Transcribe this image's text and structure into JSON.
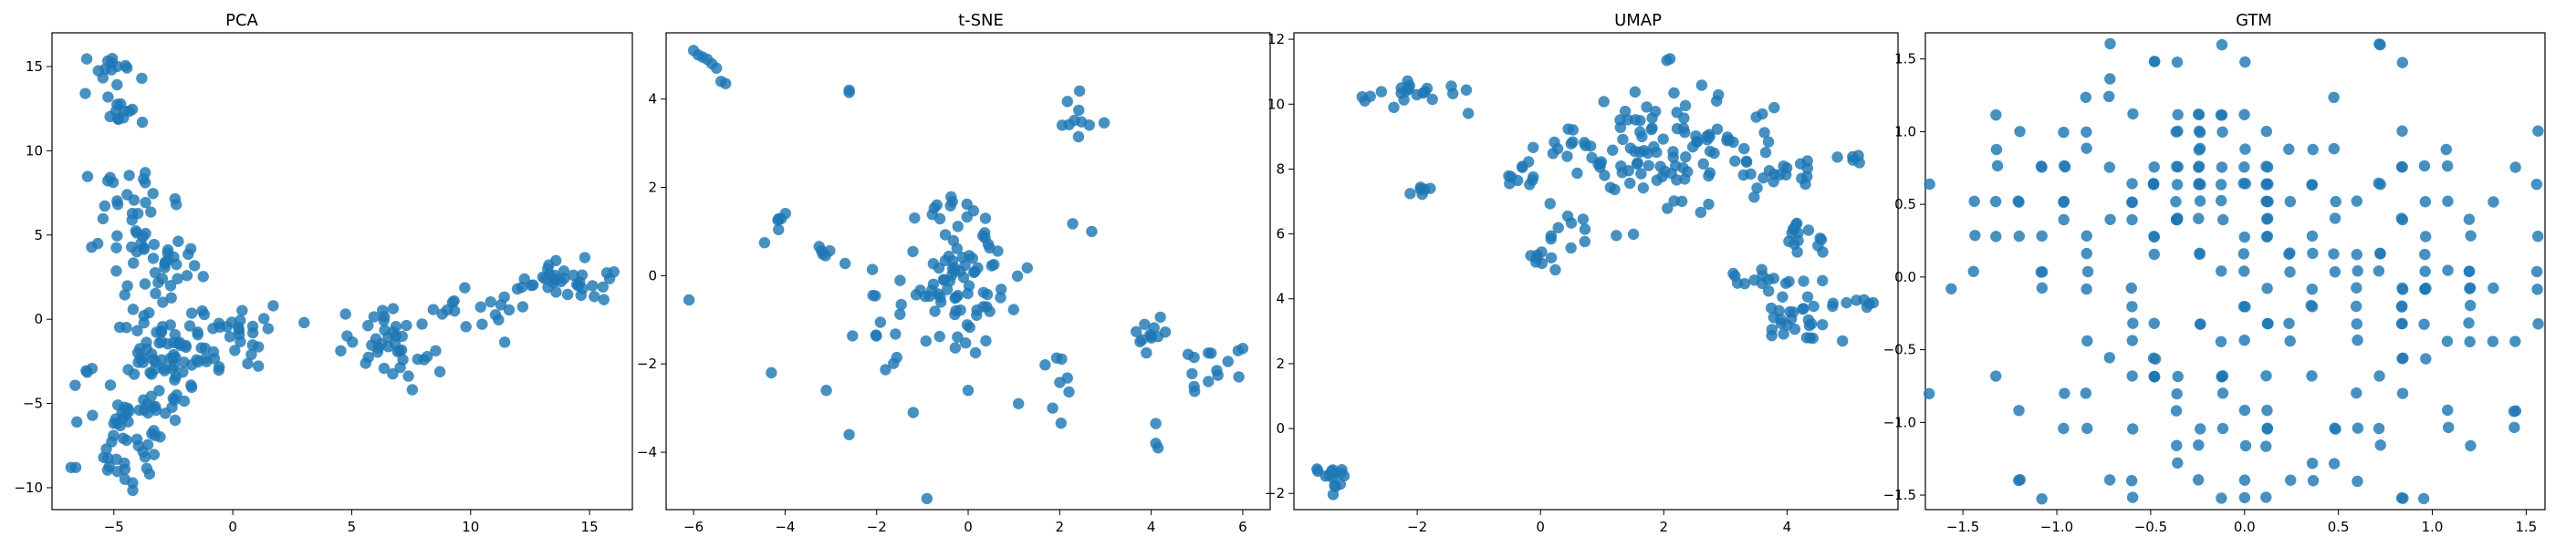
{
  "chart_data": [
    {
      "type": "scatter",
      "title": "PCA",
      "xlim": [
        -7.6,
        16.8
      ],
      "ylim": [
        -11.3,
        17.0
      ],
      "xticks": [
        -5,
        0,
        5,
        10,
        15
      ],
      "yticks": [
        -10,
        -5,
        0,
        5,
        10,
        15
      ],
      "color": "#1f77b4",
      "grid": false,
      "clusters": [
        {
          "x": -5.0,
          "y": 14.5,
          "sx": 0.45,
          "sy": 0.8,
          "n": 15
        },
        {
          "x": -4.5,
          "y": 12.0,
          "sx": 0.35,
          "sy": 0.4,
          "n": 10
        },
        {
          "x": -4.5,
          "y": 6.5,
          "sx": 1.0,
          "sy": 1.3,
          "n": 25
        },
        {
          "x": -3.2,
          "y": 3.5,
          "sx": 1.0,
          "sy": 1.6,
          "n": 40
        },
        {
          "x": -2.8,
          "y": -1.5,
          "sx": 1.4,
          "sy": 1.3,
          "n": 60
        },
        {
          "x": -4.0,
          "y": -5.5,
          "sx": 1.1,
          "sy": 1.6,
          "n": 50
        },
        {
          "x": -4.3,
          "y": -8.8,
          "sx": 0.8,
          "sy": 0.8,
          "n": 15
        },
        {
          "x": -0.2,
          "y": -1.0,
          "sx": 1.0,
          "sy": 1.1,
          "n": 30
        },
        {
          "x": 6.5,
          "y": -1.5,
          "sx": 1.1,
          "sy": 1.1,
          "n": 40
        },
        {
          "x": 10.0,
          "y": 0.5,
          "sx": 1.2,
          "sy": 0.7,
          "n": 20
        },
        {
          "x": 14.0,
          "y": 2.3,
          "sx": 1.0,
          "sy": 0.6,
          "n": 35
        }
      ],
      "extra_points": [
        [
          -6.8,
          -8.8
        ],
        [
          -6.6,
          -8.8
        ],
        [
          3.0,
          -0.2
        ],
        [
          1.7,
          0.8
        ],
        [
          -6.2,
          13.4
        ]
      ]
    },
    {
      "type": "scatter",
      "title": "t-SNE",
      "xlim": [
        -6.6,
        6.6
      ],
      "ylim": [
        -5.3,
        5.5
      ],
      "xticks": [
        -6,
        -4,
        -2,
        0,
        2,
        4,
        6
      ],
      "yticks": [
        -4,
        -2,
        0,
        2,
        4
      ],
      "color": "#1f77b4",
      "grid": false,
      "clusters": [
        {
          "x": -0.1,
          "y": 0.1,
          "sx": 0.75,
          "sy": 0.8,
          "n": 90
        },
        {
          "x": -1.7,
          "y": -0.7,
          "sx": 0.35,
          "sy": 0.7,
          "n": 12
        },
        {
          "x": 2.4,
          "y": 3.6,
          "sx": 0.25,
          "sy": 0.25,
          "n": 10
        },
        {
          "x": 4.0,
          "y": -1.3,
          "sx": 0.2,
          "sy": 0.3,
          "n": 12
        },
        {
          "x": 5.3,
          "y": -2.1,
          "sx": 0.4,
          "sy": 0.2,
          "n": 12
        },
        {
          "x": -4.0,
          "y": 1.1,
          "sx": 0.25,
          "sy": 0.25,
          "n": 6
        },
        {
          "x": 2.1,
          "y": -2.7,
          "sx": 0.2,
          "sy": 0.4,
          "n": 8
        },
        {
          "x": -3.2,
          "y": 0.55,
          "sx": 0.15,
          "sy": 0.08,
          "n": 5
        }
      ],
      "extra_points": [
        [
          -6.0,
          5.1
        ],
        [
          -5.9,
          5.0
        ],
        [
          -5.8,
          4.95
        ],
        [
          -5.7,
          4.9
        ],
        [
          -5.6,
          4.8
        ],
        [
          -5.5,
          4.7
        ],
        [
          -5.3,
          4.35
        ],
        [
          -5.4,
          4.4
        ],
        [
          -6.1,
          -0.55
        ],
        [
          -4.3,
          -2.2
        ],
        [
          -2.6,
          4.2
        ],
        [
          -2.6,
          4.15
        ],
        [
          -0.9,
          -5.05
        ],
        [
          4.1,
          -3.35
        ],
        [
          4.1,
          -3.8
        ],
        [
          4.15,
          -3.9
        ],
        [
          5.9,
          -1.7
        ],
        [
          6.0,
          -1.65
        ],
        [
          2.7,
          1.0
        ],
        [
          -2.6,
          -3.6
        ],
        [
          -3.1,
          -2.6
        ],
        [
          -1.2,
          -3.1
        ],
        [
          0.0,
          -2.6
        ],
        [
          1.1,
          -2.9
        ]
      ]
    },
    {
      "type": "scatter",
      "title": "UMAP",
      "xlim": [
        -4.0,
        5.8
      ],
      "ylim": [
        -2.5,
        12.2
      ],
      "xticks": [
        -2,
        0,
        2,
        4
      ],
      "yticks": [
        -2,
        0,
        2,
        4,
        6,
        8,
        10,
        12
      ],
      "color": "#1f77b4",
      "grid": false,
      "clusters": [
        {
          "x": -3.4,
          "y": -1.5,
          "sx": 0.15,
          "sy": 0.25,
          "n": 15
        },
        {
          "x": -2.0,
          "y": 10.3,
          "sx": 0.4,
          "sy": 0.2,
          "n": 20
        },
        {
          "x": -1.9,
          "y": 7.4,
          "sx": 0.12,
          "sy": 0.12,
          "n": 6
        },
        {
          "x": -0.4,
          "y": 7.7,
          "sx": 0.15,
          "sy": 0.2,
          "n": 8
        },
        {
          "x": 1.9,
          "y": 8.5,
          "sx": 0.9,
          "sy": 0.9,
          "n": 120
        },
        {
          "x": 0.6,
          "y": 6.0,
          "sx": 0.25,
          "sy": 0.3,
          "n": 10
        },
        {
          "x": 0.1,
          "y": 5.2,
          "sx": 0.25,
          "sy": 0.2,
          "n": 8
        },
        {
          "x": 3.9,
          "y": 8.0,
          "sx": 0.3,
          "sy": 0.3,
          "n": 12
        },
        {
          "x": 4.4,
          "y": 6.0,
          "sx": 0.3,
          "sy": 0.3,
          "n": 15
        },
        {
          "x": 3.7,
          "y": 4.5,
          "sx": 0.3,
          "sy": 0.25,
          "n": 15
        },
        {
          "x": 4.1,
          "y": 3.4,
          "sx": 0.3,
          "sy": 0.4,
          "n": 25
        },
        {
          "x": 5.0,
          "y": 3.9,
          "sx": 0.2,
          "sy": 0.15,
          "n": 8
        },
        {
          "x": 5.1,
          "y": 8.4,
          "sx": 0.2,
          "sy": 0.1,
          "n": 5
        }
      ],
      "extra_points": [
        [
          2.1,
          11.4
        ],
        [
          2.05,
          11.35
        ],
        [
          3.5,
          9.6
        ],
        [
          3.6,
          9.7
        ],
        [
          4.9,
          2.7
        ]
      ]
    },
    {
      "type": "scatter",
      "title": "GTM",
      "xlim": [
        -1.7,
        1.6
      ],
      "ylim": [
        -1.6,
        1.68
      ],
      "xticks": [
        -1.5,
        -1.0,
        -0.5,
        0.0,
        0.5,
        1.0,
        1.5
      ],
      "yticks": [
        -1.5,
        -1.0,
        -0.5,
        0.0,
        0.5,
        1.0,
        1.5
      ],
      "color": "#1f77b4",
      "grid": false,
      "grid_points": true,
      "grid_step": 0.12,
      "grid_x0": -1.68,
      "grid_y0": -1.52,
      "grid_cols": 28,
      "grid_rows": 27,
      "clusters": [
        {
          "x": -0.5,
          "y": 0.8,
          "sx": 0.45,
          "sy": 0.35,
          "n": 70
        },
        {
          "x": 0.3,
          "y": 0.6,
          "sx": 0.5,
          "sy": 0.45,
          "n": 50
        },
        {
          "x": 0.0,
          "y": -0.3,
          "sx": 0.6,
          "sy": 0.5,
          "n": 60
        },
        {
          "x": 1.2,
          "y": 0.0,
          "sx": 0.3,
          "sy": 0.6,
          "n": 40
        },
        {
          "x": -0.5,
          "y": -0.9,
          "sx": 0.5,
          "sy": 0.4,
          "n": 25
        },
        {
          "x": 0.3,
          "y": -1.1,
          "sx": 0.4,
          "sy": 0.3,
          "n": 20
        }
      ],
      "extra_points": [
        [
          -0.45,
          1.52
        ],
        [
          -0.36,
          1.52
        ],
        [
          0.68,
          1.56
        ],
        [
          0.88,
          1.44
        ],
        [
          0.02,
          1.44
        ],
        [
          -1.6,
          -0.05
        ],
        [
          -1.48,
          0.05
        ],
        [
          -1.4,
          0.48
        ],
        [
          -1.25,
          0.48
        ],
        [
          0.8,
          -1.5
        ],
        [
          0.0,
          -1.42
        ],
        [
          -0.4,
          -1.25
        ],
        [
          -0.6,
          -1.35
        ]
      ]
    }
  ]
}
